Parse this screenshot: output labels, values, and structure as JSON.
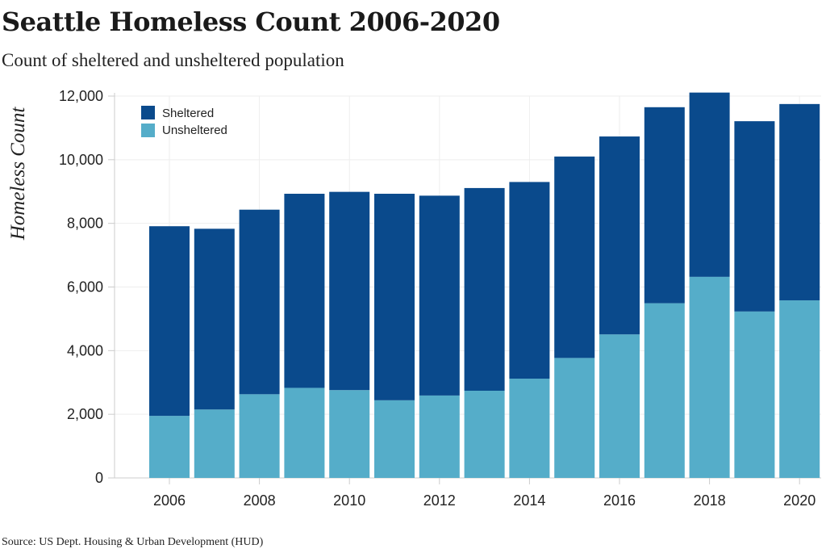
{
  "header": {
    "title": "Seattle Homeless Count 2006-2020",
    "subtitle": "Count of sheltered and unsheltered population"
  },
  "footer": {
    "source": "Source: US Dept. Housing & Urban Development (HUD)"
  },
  "colors": {
    "sheltered": "#0a4a8c",
    "unsheltered": "#55adc9",
    "grid": "#eeeeee",
    "axis": "#cccccc"
  },
  "chart_data": {
    "type": "bar",
    "stacked": true,
    "title": "Seattle Homeless Count 2006-2020",
    "subtitle": "Count of sheltered and unsheltered population",
    "xlabel": "",
    "ylabel": "Homeless Count",
    "categories": [
      "2006",
      "2007",
      "2008",
      "2009",
      "2010",
      "2011",
      "2012",
      "2013",
      "2014",
      "2015",
      "2016",
      "2017",
      "2018",
      "2019",
      "2020"
    ],
    "x_tick_labels": [
      "2006",
      "2008",
      "2010",
      "2012",
      "2014",
      "2016",
      "2018",
      "2020"
    ],
    "y_ticks": [
      0,
      2000,
      4000,
      6000,
      8000,
      10000,
      12000
    ],
    "y_tick_labels": [
      "0",
      "2,000",
      "4,000",
      "6,000",
      "8,000",
      "10,000",
      "12,000"
    ],
    "ylim": [
      0,
      12000
    ],
    "grid": true,
    "legend_position": "top-left",
    "series": [
      {
        "name": "Unsheltered",
        "values": [
          1950,
          2150,
          2630,
          2830,
          2760,
          2440,
          2590,
          2740,
          3120,
          3770,
          4510,
          5490,
          6320,
          5230,
          5580
        ]
      },
      {
        "name": "Sheltered",
        "values": [
          5960,
          5680,
          5800,
          6100,
          6230,
          6490,
          6280,
          6370,
          6180,
          6330,
          6220,
          6160,
          5790,
          5980,
          6170
        ]
      }
    ],
    "legend": [
      {
        "name": "Sheltered",
        "color": "#0a4a8c"
      },
      {
        "name": "Unsheltered",
        "color": "#55adc9"
      }
    ]
  }
}
